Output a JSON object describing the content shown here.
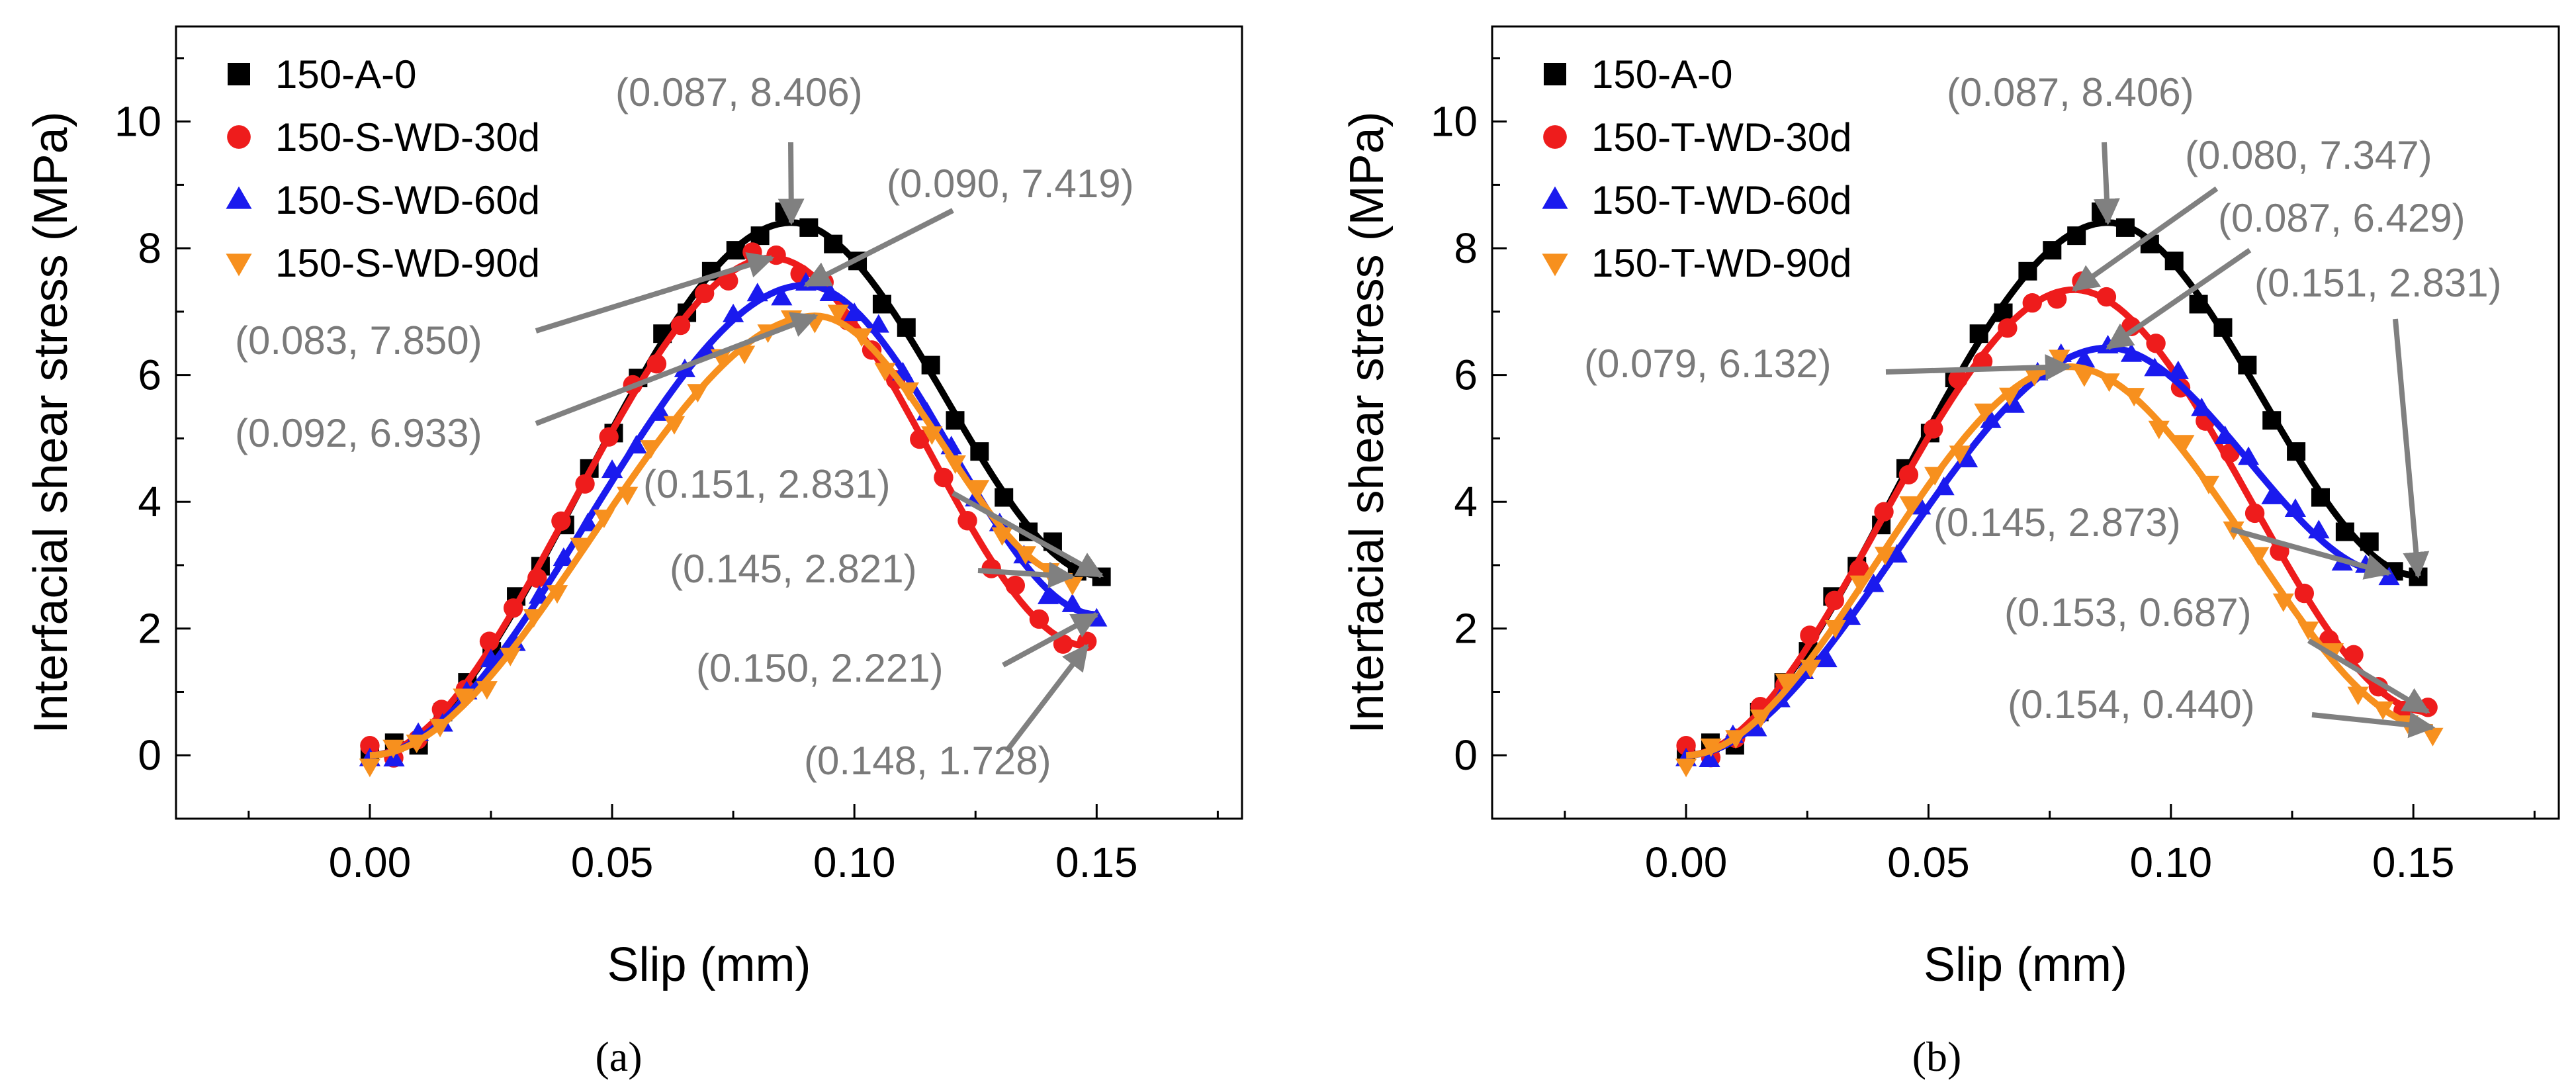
{
  "chart_data": [
    {
      "type": "scatter",
      "panel_label": "(a)",
      "xlabel": "Slip (mm)",
      "ylabel": "Interfacial shear stress (MPa)",
      "xlim": [
        -0.04,
        0.18
      ],
      "ylim": [
        -1,
        11.5
      ],
      "xticks": [
        0.0,
        0.05,
        0.1,
        0.15
      ],
      "xtick_labels": [
        "0.00",
        "0.05",
        "0.10",
        "0.15"
      ],
      "yticks": [
        0,
        2,
        4,
        6,
        8,
        10
      ],
      "ytick_labels": [
        "0",
        "2",
        "4",
        "6",
        "8",
        "10"
      ],
      "grid": false,
      "legend_position": "top-left",
      "series": [
        {
          "name": "150-A-0",
          "color": "#000000",
          "marker": "square",
          "peak": [
            0.087,
            8.406
          ],
          "end": [
            0.151,
            2.831
          ]
        },
        {
          "name": "150-S-WD-30d",
          "color": "#ee1c1c",
          "marker": "circle",
          "peak": [
            0.083,
            7.85
          ],
          "end": [
            0.148,
            1.728
          ]
        },
        {
          "name": "150-S-WD-60d",
          "color": "#1a1aee",
          "marker": "triangle-up",
          "peak": [
            0.09,
            7.419
          ],
          "end": [
            0.15,
            2.221
          ]
        },
        {
          "name": "150-S-WD-90d",
          "color": "#f7901e",
          "marker": "triangle-down",
          "peak": [
            0.092,
            6.933
          ],
          "end": [
            0.145,
            2.821
          ]
        }
      ],
      "annotations": [
        {
          "text": "(0.087, 8.406)",
          "target": [
            0.087,
            8.406
          ]
        },
        {
          "text": "(0.090, 7.419)",
          "target": [
            0.09,
            7.419
          ]
        },
        {
          "text": "(0.083, 7.850)",
          "target": [
            0.083,
            7.85
          ]
        },
        {
          "text": "(0.092, 6.933)",
          "target": [
            0.092,
            6.933
          ]
        },
        {
          "text": "(0.151, 2.831)",
          "target": [
            0.151,
            2.831
          ]
        },
        {
          "text": "(0.145, 2.821)",
          "target": [
            0.145,
            2.821
          ]
        },
        {
          "text": "(0.150, 2.221)",
          "target": [
            0.15,
            2.221
          ]
        },
        {
          "text": "(0.148, 1.728)",
          "target": [
            0.148,
            1.728
          ]
        }
      ]
    },
    {
      "type": "scatter",
      "panel_label": "(b)",
      "xlabel": "Slip (mm)",
      "ylabel": "Interfacial shear stress (MPa)",
      "xlim": [
        -0.04,
        0.18
      ],
      "ylim": [
        -1,
        11.5
      ],
      "xticks": [
        0.0,
        0.05,
        0.1,
        0.15
      ],
      "xtick_labels": [
        "0.00",
        "0.05",
        "0.10",
        "0.15"
      ],
      "yticks": [
        0,
        2,
        4,
        6,
        8,
        10
      ],
      "ytick_labels": [
        "0",
        "2",
        "4",
        "6",
        "8",
        "10"
      ],
      "grid": false,
      "legend_position": "top-left",
      "series": [
        {
          "name": "150-A-0",
          "color": "#000000",
          "marker": "square",
          "peak": [
            0.087,
            8.406
          ],
          "end": [
            0.151,
            2.831
          ]
        },
        {
          "name": "150-T-WD-30d",
          "color": "#ee1c1c",
          "marker": "circle",
          "peak": [
            0.08,
            7.347
          ],
          "end": [
            0.153,
            0.687
          ]
        },
        {
          "name": "150-T-WD-60d",
          "color": "#1a1aee",
          "marker": "triangle-up",
          "peak": [
            0.087,
            6.429
          ],
          "end": [
            0.145,
            2.873
          ]
        },
        {
          "name": "150-T-WD-90d",
          "color": "#f7901e",
          "marker": "triangle-down",
          "peak": [
            0.079,
            6.132
          ],
          "end": [
            0.154,
            0.44
          ]
        }
      ],
      "annotations": [
        {
          "text": "(0.087, 8.406)",
          "target": [
            0.087,
            8.406
          ]
        },
        {
          "text": "(0.080, 7.347)",
          "target": [
            0.08,
            7.347
          ]
        },
        {
          "text": "(0.087, 6.429)",
          "target": [
            0.087,
            6.429
          ]
        },
        {
          "text": "(0.151, 2.831)",
          "target": [
            0.151,
            2.831
          ]
        },
        {
          "text": "(0.079, 6.132)",
          "target": [
            0.079,
            6.132
          ]
        },
        {
          "text": "(0.145, 2.873)",
          "target": [
            0.145,
            2.873
          ]
        },
        {
          "text": "(0.153, 0.687)",
          "target": [
            0.153,
            0.687
          ]
        },
        {
          "text": "(0.154, 0.440)",
          "target": [
            0.154,
            0.44
          ]
        }
      ]
    }
  ]
}
